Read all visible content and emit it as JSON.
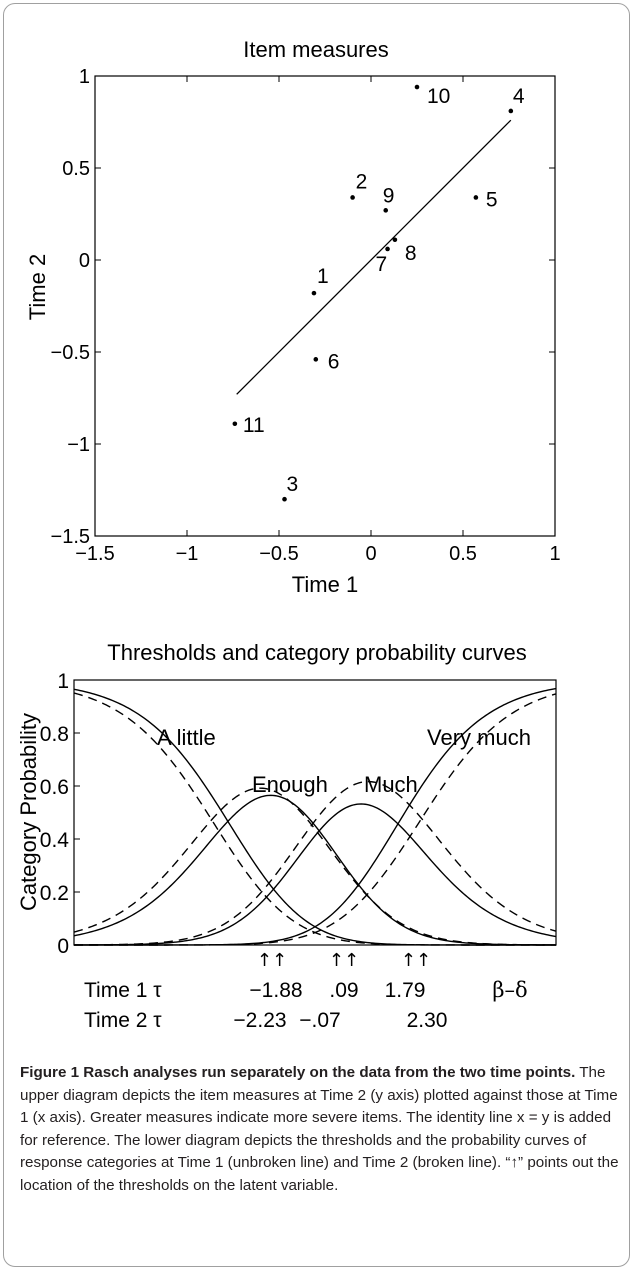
{
  "chart_data": [
    {
      "type": "scatter",
      "title": "Item measures",
      "xlabel": "Time 1",
      "ylabel": "Time 2",
      "xlim": [
        -1.5,
        1
      ],
      "ylim": [
        -1.5,
        1
      ],
      "xticks": [
        "−1.5",
        "−1",
        "−0.5",
        "0",
        "0.5",
        "1"
      ],
      "yticks": [
        "−1.5",
        "−1",
        "−0.5",
        "0",
        "0.5",
        "1"
      ],
      "points": [
        {
          "label": "1",
          "x": -0.31,
          "y": -0.18
        },
        {
          "label": "2",
          "x": -0.1,
          "y": 0.34
        },
        {
          "label": "3",
          "x": -0.47,
          "y": -1.3
        },
        {
          "label": "4",
          "x": 0.76,
          "y": 0.81
        },
        {
          "label": "5",
          "x": 0.57,
          "y": 0.34
        },
        {
          "label": "6",
          "x": -0.3,
          "y": -0.54
        },
        {
          "label": "7",
          "x": 0.09,
          "y": 0.06
        },
        {
          "label": "8",
          "x": 0.13,
          "y": 0.11
        },
        {
          "label": "9",
          "x": 0.08,
          "y": 0.27
        },
        {
          "label": "10",
          "x": 0.25,
          "y": 0.94
        },
        {
          "label": "11",
          "x": -0.74,
          "y": -0.89
        }
      ],
      "line": {
        "x": [
          -0.73,
          0.76
        ],
        "y": [
          -0.73,
          0.76
        ]
      },
      "grid": false
    },
    {
      "type": "line",
      "title": "Thresholds and category probability curves",
      "ylabel": "Category Probability",
      "ylim": [
        0,
        1
      ],
      "yticks": [
        "0",
        "0.2",
        "0.4",
        "0.6",
        "0.8",
        "1"
      ],
      "xlim": [
        -5.2,
        5.2
      ],
      "category_labels": [
        "A little",
        "Enough",
        "Much",
        "Very much"
      ],
      "series": [
        {
          "style": "solid",
          "thresholds": [
            -1.88,
            0.09,
            1.79
          ]
        },
        {
          "style": "dashed",
          "thresholds": [
            -2.23,
            -0.07,
            2.3
          ]
        }
      ],
      "arrows": "↑↑",
      "threshold_rows": [
        {
          "label": "Time 1 τ",
          "values": [
            "−1.88",
            ".09",
            "1.79"
          ]
        },
        {
          "label": "Time 2 τ",
          "values": [
            "−2.23",
            "−.07",
            "2.30"
          ]
        }
      ],
      "axis_note": "β–δ",
      "grid": false
    }
  ],
  "caption": {
    "title": "Figure 1 Rasch analyses run separately on the data from the two time points.",
    "body": " The upper diagram depicts the item measures at Time 2 (y axis) plotted against those at Time 1 (x axis). Greater measures indicate more severe items. The identity line x = y is added for reference. The lower diagram depicts the thresholds and the probability curves of response categories at Time 1 (unbroken line) and Time 2 (broken line). “↑” points out the location of the thresholds on the latent variable."
  }
}
